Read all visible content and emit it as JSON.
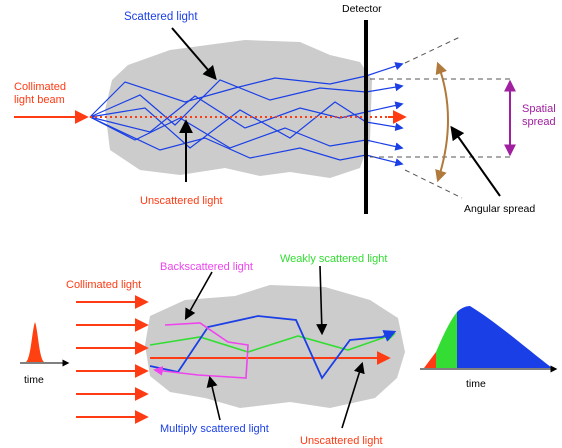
{
  "colors": {
    "scatter_blue": "#1a3fe6",
    "beam_red": "#ff3b14",
    "angular_brown": "#b07a3c",
    "spatial_purple": "#a020a0",
    "medium_gray": "#cccccc",
    "weak_green": "#33dd33",
    "back_magenta": "#ee44ee",
    "pulse_orange": "#ff4010"
  },
  "top_panel": {
    "detector_label": "Detector",
    "scattered_label": "Scattered light",
    "collimated_label_line1": "Collimated",
    "collimated_label_line2": "light beam",
    "unscattered_label": "Unscattered light",
    "spatial_label_line1": "Spatial",
    "spatial_label_line2": "spread",
    "angular_label": "Angular spread"
  },
  "bottom_panel": {
    "collimated_label": "Collimated light",
    "backscattered_label": "Backscattered light",
    "weakly_scattered_label": "Weakly scattered light",
    "multiply_scattered_label": "Multiply scattered light",
    "unscattered_label": "Unscattered light",
    "time_label_left": "time",
    "time_label_right": "time"
  }
}
